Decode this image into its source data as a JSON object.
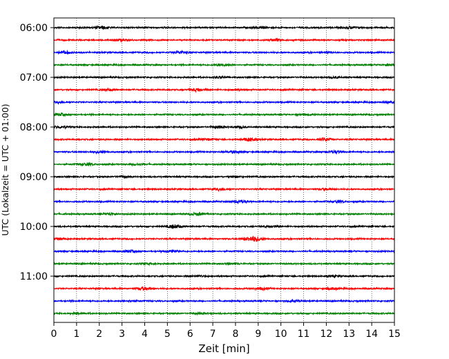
{
  "chart_data": {
    "type": "line",
    "title": "",
    "xlabel": "Zeit  [min]",
    "ylabel": "UTC (Lokalzeit = UTC + 01:00)",
    "xlim": [
      0,
      15
    ],
    "x_ticks": [
      "0",
      "1",
      "2",
      "3",
      "4",
      "5",
      "6",
      "7",
      "8",
      "9",
      "10",
      "11",
      "12",
      "13",
      "14",
      "15"
    ],
    "y_tick_labels": [
      "06:00",
      "07:00",
      "08:00",
      "09:00",
      "10:00",
      "11:00"
    ],
    "grid": {
      "x": "dotted",
      "y": "off"
    },
    "trace_colors": [
      "#000000",
      "#ff0000",
      "#0000ff",
      "#008000"
    ],
    "traces": [
      {
        "start": "06:00",
        "events": [
          [
            2.1,
            0.7
          ],
          [
            9.1,
            0.5
          ],
          [
            13.1,
            0.6
          ]
        ]
      },
      {
        "start": "06:15",
        "events": [
          [
            2.9,
            0.5
          ],
          [
            9.8,
            0.6
          ]
        ]
      },
      {
        "start": "06:30",
        "events": [
          [
            0.5,
            0.7
          ],
          [
            5.6,
            0.7
          ],
          [
            12.0,
            0.4
          ]
        ]
      },
      {
        "start": "06:45",
        "events": [
          [
            7.4,
            0.6
          ],
          [
            14.8,
            0.6
          ]
        ]
      },
      {
        "start": "07:00",
        "events": [
          [
            7.3,
            0.4
          ],
          [
            12.4,
            0.4
          ]
        ]
      },
      {
        "start": "07:15",
        "events": [
          [
            2.4,
            0.5
          ],
          [
            6.3,
            0.8
          ],
          [
            8.1,
            0.4
          ]
        ]
      },
      {
        "start": "07:30",
        "events": [
          [
            0.3,
            0.5
          ],
          [
            14.8,
            0.4
          ]
        ]
      },
      {
        "start": "07:45",
        "events": [
          [
            0.3,
            0.6
          ],
          [
            11.0,
            0.4
          ]
        ]
      },
      {
        "start": "08:00",
        "events": [
          [
            0.3,
            0.6
          ],
          [
            7.3,
            0.6
          ],
          [
            8.2,
            0.5
          ]
        ]
      },
      {
        "start": "08:15",
        "events": [
          [
            6.8,
            0.5
          ],
          [
            8.6,
            1.0
          ],
          [
            11.9,
            0.8
          ]
        ]
      },
      {
        "start": "08:30",
        "events": [
          [
            2.0,
            0.6
          ],
          [
            7.9,
            0.6
          ],
          [
            12.4,
            0.8
          ]
        ]
      },
      {
        "start": "08:45",
        "events": [
          [
            1.4,
            0.7
          ],
          [
            3.7,
            0.5
          ]
        ]
      },
      {
        "start": "09:00",
        "events": [
          [
            3.0,
            0.4
          ],
          [
            8.0,
            0.4
          ]
        ]
      },
      {
        "start": "09:15",
        "events": [
          [
            7.4,
            0.7
          ],
          [
            12.0,
            0.5
          ]
        ]
      },
      {
        "start": "09:30",
        "events": [
          [
            8.2,
            0.9
          ],
          [
            12.5,
            0.5
          ]
        ]
      },
      {
        "start": "09:45",
        "events": [
          [
            2.5,
            0.6
          ],
          [
            6.3,
            0.8
          ]
        ]
      },
      {
        "start": "10:00",
        "events": [
          [
            5.3,
            1.0
          ],
          [
            9.6,
            0.5
          ]
        ]
      },
      {
        "start": "10:15",
        "events": [
          [
            0.3,
            0.6
          ],
          [
            8.8,
            1.6
          ]
        ]
      },
      {
        "start": "10:30",
        "events": [
          [
            3.4,
            0.5
          ],
          [
            5.2,
            0.6
          ]
        ]
      },
      {
        "start": "10:45",
        "events": [
          [
            4.2,
            0.4
          ],
          [
            7.9,
            0.4
          ]
        ]
      },
      {
        "start": "11:00",
        "events": [
          [
            6.4,
            0.4
          ],
          [
            12.3,
            0.4
          ]
        ]
      },
      {
        "start": "11:15",
        "events": [
          [
            4.0,
            0.9
          ],
          [
            9.1,
            0.6
          ],
          [
            12.3,
            0.6
          ]
        ]
      },
      {
        "start": "11:30",
        "events": [
          [
            3.4,
            0.4
          ],
          [
            10.6,
            0.4
          ]
        ]
      },
      {
        "start": "11:45",
        "events": [
          [
            1.1,
            0.4
          ],
          [
            6.5,
            0.4
          ]
        ]
      }
    ]
  }
}
